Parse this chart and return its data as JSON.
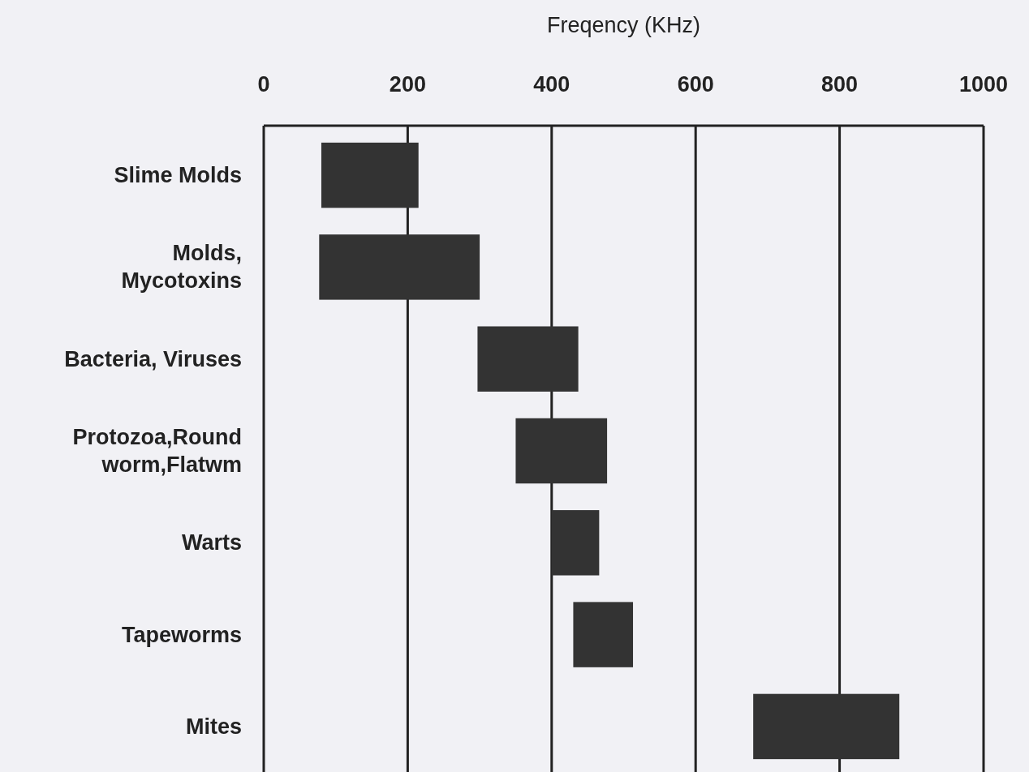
{
  "chart_data": {
    "type": "bar",
    "orientation": "horizontal",
    "xlabel": "Freqency (KHz)",
    "categories": [
      "Slime Molds",
      "Molds,\nMycotoxins",
      "Bacteria, Viruses",
      "Protozoa,Round\nworm,Flatwm",
      "Warts",
      "Tapeworms",
      "Mites"
    ],
    "base": [
      80,
      77,
      297,
      350,
      400,
      430,
      680
    ],
    "values": [
      135,
      223,
      140,
      127,
      66,
      83,
      203
    ],
    "color": "#333333",
    "xlim": [
      0,
      1000
    ],
    "xticks": [
      0,
      200,
      400,
      600,
      800,
      1000
    ],
    "grid": "x"
  }
}
